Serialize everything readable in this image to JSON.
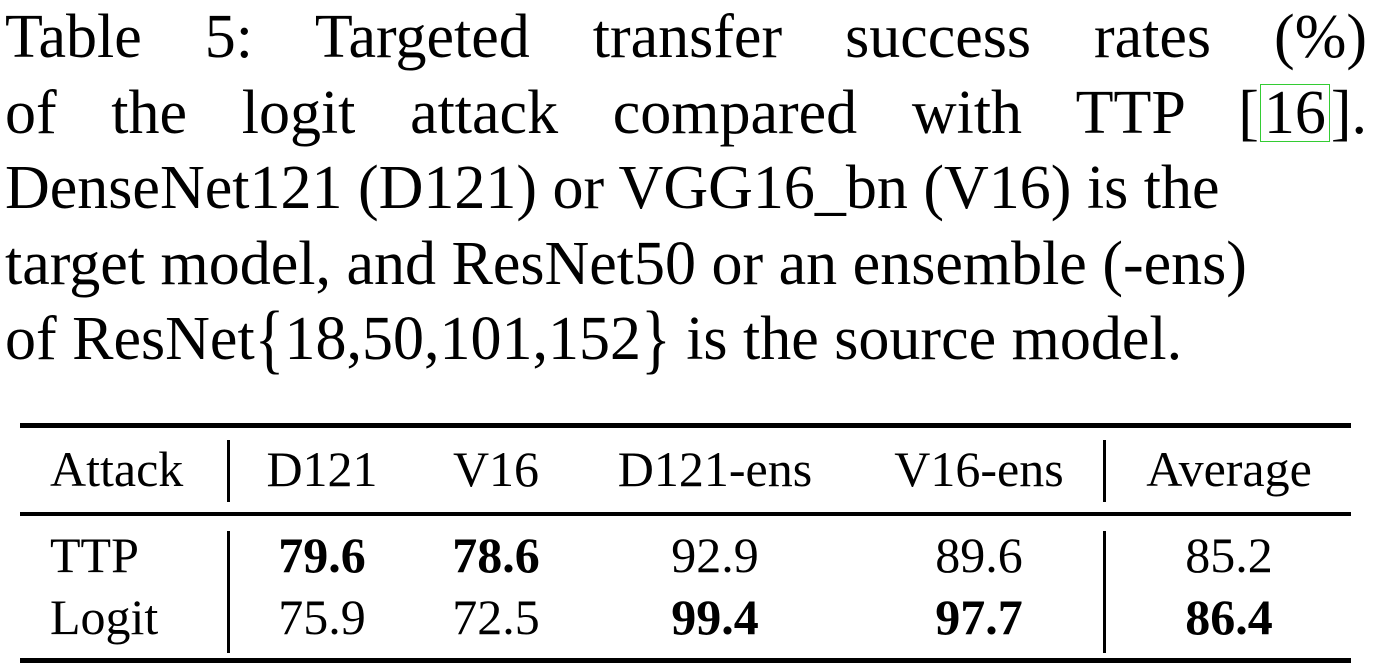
{
  "caption": {
    "line1": "Table 5:  Targeted transfer success rates (%)",
    "line2_pre": "of the logit attack compared with TTP [",
    "line2_cite": "16",
    "line2_post": "].",
    "line3": "DenseNet121 (D121) or VGG16_bn (V16) is the",
    "line4": "target model, and ResNet50 or an ensemble (-ens)",
    "line5_pre": "of ResNet",
    "line5_open_brace": "{",
    "line5_set": "18,50,101,152",
    "line5_close_brace": "}",
    "line5_post": " is the source model."
  },
  "table": {
    "headers": [
      "Attack",
      "D121",
      "V16",
      "D121-ens",
      "V16-ens",
      "Average"
    ],
    "rows": [
      {
        "attack": "TTP",
        "values": [
          "79.6",
          "78.6",
          "92.9",
          "89.6",
          "85.2"
        ],
        "bold": [
          true,
          true,
          false,
          false,
          false
        ]
      },
      {
        "attack": "Logit",
        "values": [
          "75.9",
          "72.5",
          "99.4",
          "97.7",
          "86.4"
        ],
        "bold": [
          false,
          false,
          true,
          true,
          true
        ]
      }
    ]
  }
}
